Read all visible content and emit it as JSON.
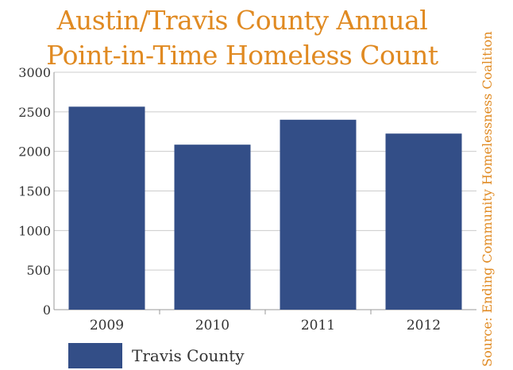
{
  "chart_data": {
    "type": "bar",
    "title": "Austin/Travis County Annual Point-in-Time Homeless Count",
    "title_lines": [
      "Austin/Travis County Annual",
      "Point-in-Time Homeless Count"
    ],
    "source": "Source: Ending Community Homelessness Coalition",
    "categories": [
      "2009",
      "2010",
      "2011",
      "2012"
    ],
    "series": [
      {
        "name": "Travis County",
        "values": [
          2565,
          2085,
          2400,
          2225
        ]
      }
    ],
    "yticks": [
      "0",
      "500",
      "1000",
      "1500",
      "2000",
      "2500",
      "3000"
    ],
    "ylim": [
      0,
      3000
    ],
    "grid": true,
    "legend": "bottom-left",
    "colors": {
      "bar": "#334E87",
      "title": "#E08A22",
      "grid": "#CCCCCC"
    }
  }
}
